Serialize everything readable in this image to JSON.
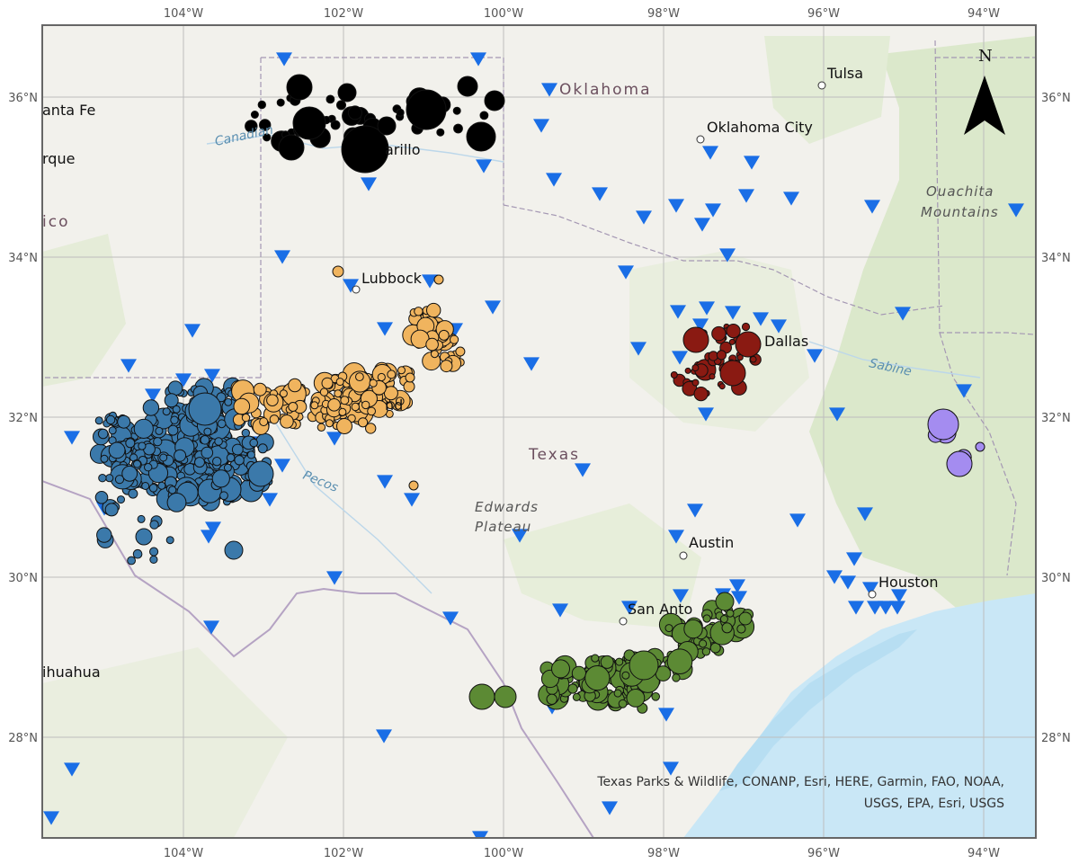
{
  "map": {
    "lon_ticks": [
      "104°W",
      "102°W",
      "100°W",
      "98°W",
      "96°W",
      "94°W"
    ],
    "lat_ticks": [
      "36°N",
      "34°N",
      "32°N",
      "30°N",
      "28°N"
    ],
    "north_label": "N",
    "attribution_line1": "Texas Parks & Wildlife, CONANP, Esri, HERE, Garmin, FAO, NOAA,",
    "attribution_line2": "USGS, EPA, Esri, USGS",
    "colors": {
      "land": "#f2f1ec",
      "green_land": "#d9e8c9",
      "water": "#c8e6f5",
      "grid": "#b9b9b9",
      "border": "#9a8aa6",
      "station": "#1a6ee6",
      "cluster_north": "#000000",
      "cluster_permian_west": "#3b79aa",
      "cluster_permian_east": "#f0b45e",
      "cluster_dallas": "#8a1a12",
      "cluster_east_texas": "#a48cf0",
      "cluster_south_texas": "#5c8a34"
    }
  },
  "places": {
    "tulsa": "Tulsa",
    "oklahoma_city": "Oklahoma City",
    "oklahoma": "Oklahoma",
    "santa_fe": "anta Fe",
    "albuquerque": "rque",
    "mexico": "ico",
    "canadian": "Canadian",
    "amarillo": "arillo",
    "lubbock": "Lubbock",
    "midland": "nd",
    "pecos": "Pecos",
    "texas": "Texas",
    "edwards": "Edwards",
    "plateau": "Plateau",
    "dallas": "Dallas",
    "sabine": "Sabine",
    "ouachita": "Ouachita",
    "mountains": "Mountains",
    "austin": "Austin",
    "houston": "Houston",
    "san_antonio": "San Anto",
    "chihuahua": "ihuahua"
  }
}
